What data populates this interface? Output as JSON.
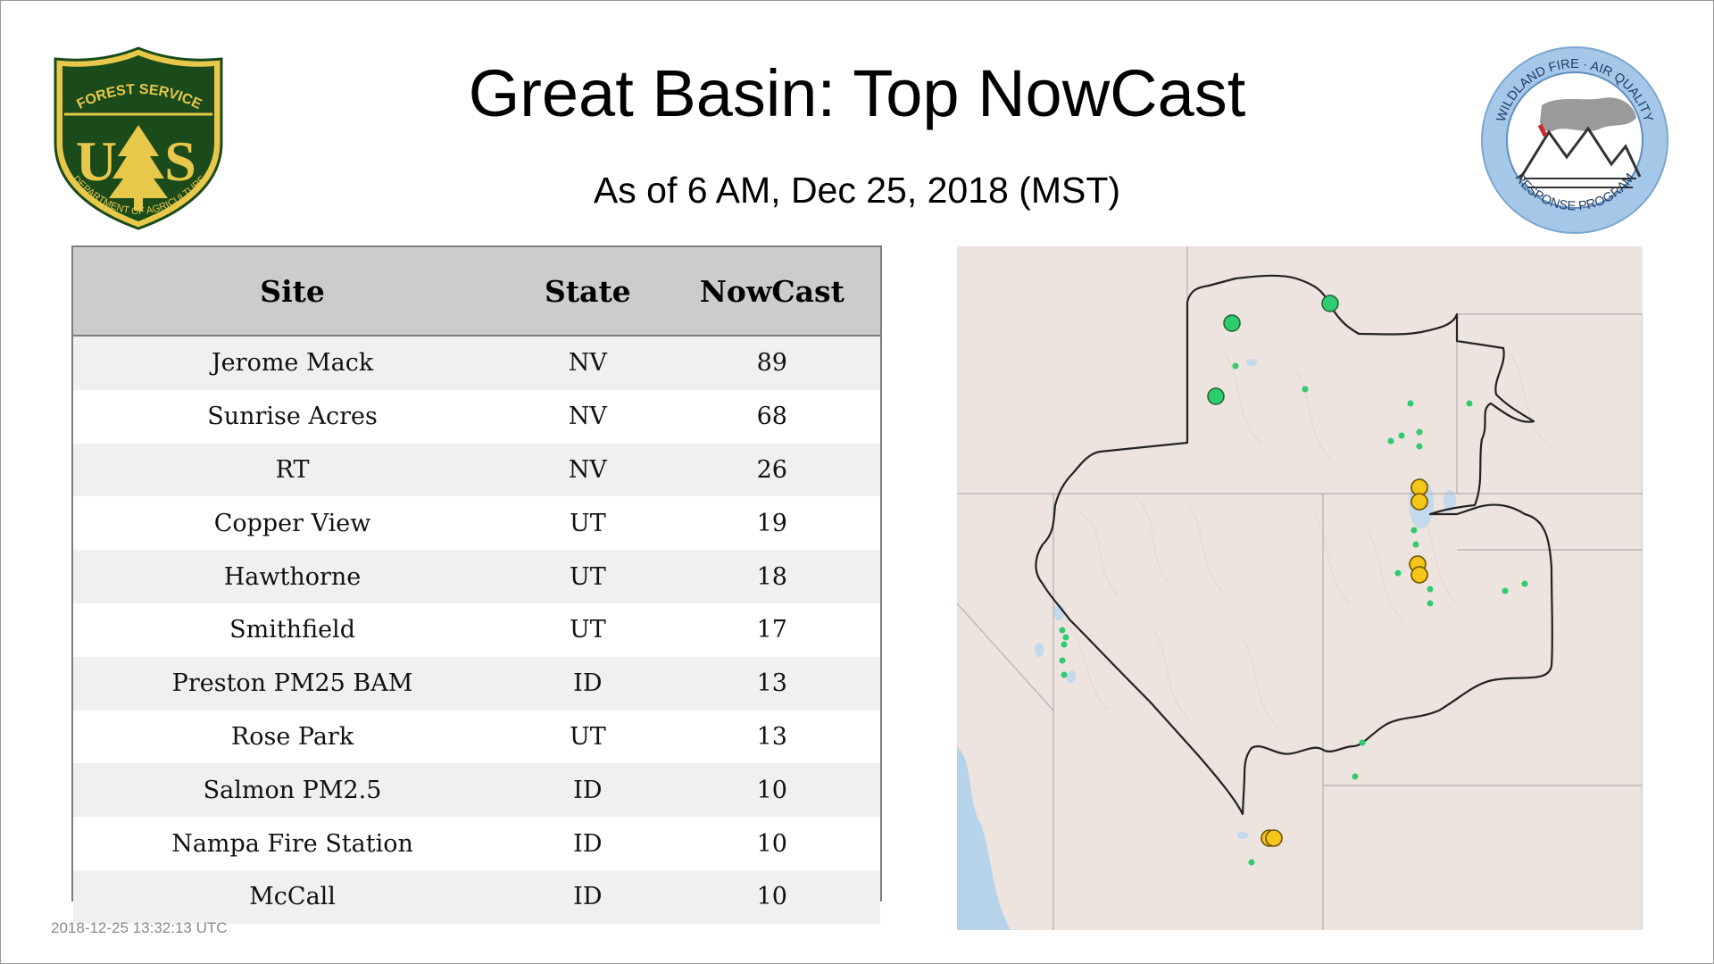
{
  "header": {
    "title": "Great Basin: Top NowCast",
    "subtitle": "As of  6 AM, Dec 25, 2018 (MST)"
  },
  "logos": {
    "forest_service": {
      "top_text": "FOREST SERVICE",
      "letters_left": "U",
      "letters_right": "S",
      "bottom_text": "DEPARTMENT OF AGRICULTURE",
      "icon": "pine-tree-icon",
      "colors": {
        "shield": "#1b4a1b",
        "gold": "#e8c84a"
      }
    },
    "wildland_fire": {
      "top_text": "WILDLAND FIRE · AIR QUALITY",
      "bottom_text": "RESPONSE PROGRAM",
      "icon": "mountains-smoke-icon",
      "colors": {
        "ring": "#a6c8e8"
      }
    }
  },
  "table": {
    "columns": [
      "Site",
      "State",
      "NowCast"
    ],
    "rows": [
      {
        "site": "Jerome Mack",
        "state": "NV",
        "nowcast": "89"
      },
      {
        "site": "Sunrise Acres",
        "state": "NV",
        "nowcast": "68"
      },
      {
        "site": "RT",
        "state": "NV",
        "nowcast": "26"
      },
      {
        "site": "Copper View",
        "state": "UT",
        "nowcast": "19"
      },
      {
        "site": "Hawthorne",
        "state": "UT",
        "nowcast": "18"
      },
      {
        "site": "Smithfield",
        "state": "UT",
        "nowcast": "17"
      },
      {
        "site": "Preston PM25 BAM",
        "state": "ID",
        "nowcast": "13"
      },
      {
        "site": "Rose Park",
        "state": "UT",
        "nowcast": "13"
      },
      {
        "site": "Salmon PM2.5",
        "state": "ID",
        "nowcast": "10"
      },
      {
        "site": "Nampa Fire Station",
        "state": "ID",
        "nowcast": "10"
      },
      {
        "site": "McCall",
        "state": "ID",
        "nowcast": "10"
      }
    ]
  },
  "map": {
    "colors": {
      "land": "#ede3df",
      "water": "#b7d3ea",
      "boundary": "#222222",
      "state_lines": "#b9b9b9",
      "good": "#2ecc71",
      "moderate": "#f5c518"
    }
  },
  "footer": {
    "timestamp": "2018-12-25 13:32:13 UTC"
  }
}
